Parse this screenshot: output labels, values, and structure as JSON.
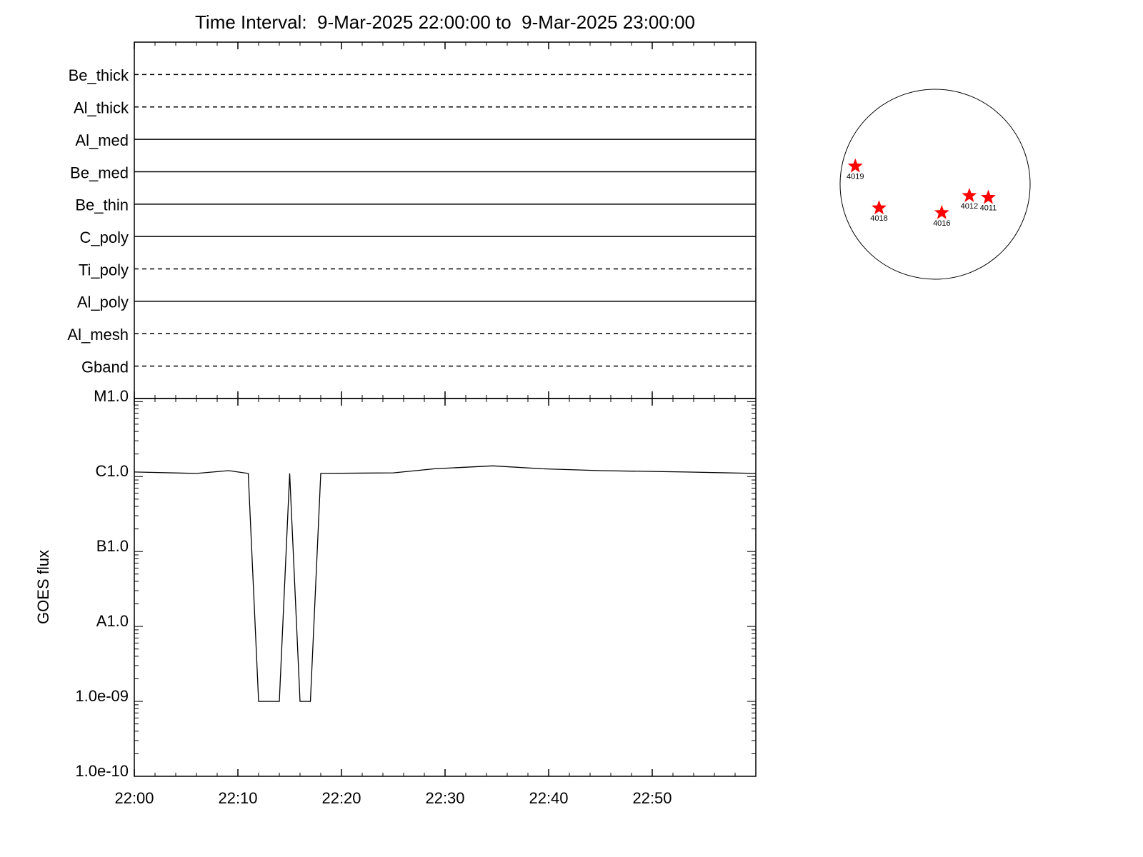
{
  "chart_data": [
    {
      "type": "channels",
      "title": "Time Interval:  9-Mar-2025 22:00:00 to  9-Mar-2025 23:00:00",
      "categories": [
        "Be_thick",
        "Al_thick",
        "Al_med",
        "Be_med",
        "Be_thin",
        "C_poly",
        "Ti_poly",
        "Al_poly",
        "Al_mesh",
        "Gband"
      ],
      "line_styles": [
        "dashed",
        "dashed",
        "solid",
        "solid",
        "solid",
        "solid",
        "dashed",
        "solid",
        "dashed",
        "dashed"
      ],
      "xlim": [
        0,
        60
      ],
      "xticks": [
        0,
        10,
        20,
        30,
        40,
        50
      ]
    },
    {
      "type": "line",
      "ylabel": "GOES flux",
      "log_scale": true,
      "color": "#000000",
      "x": [
        0,
        6,
        9.1,
        11,
        12,
        14,
        15,
        16,
        17,
        18,
        25,
        29,
        34.6,
        39.4,
        45,
        53.2,
        60
      ],
      "values": [
        1.15e-06,
        1.1e-06,
        1.2e-06,
        1.1e-06,
        1e-09,
        1e-09,
        1.1e-06,
        1e-09,
        1e-09,
        1.1e-06,
        1.12e-06,
        1.27e-06,
        1.39e-06,
        1.27e-06,
        1.2e-06,
        1.15e-06,
        1.1e-06
      ],
      "xlim": [
        0,
        60
      ],
      "xticks": [
        {
          "value": 0,
          "label": "22:00"
        },
        {
          "value": 10,
          "label": "22:10"
        },
        {
          "value": 20,
          "label": "22:20"
        },
        {
          "value": 30,
          "label": "22:30"
        },
        {
          "value": 40,
          "label": "22:40"
        },
        {
          "value": 50,
          "label": "22:50"
        }
      ],
      "ylim": [
        1e-10,
        1.1e-05
      ],
      "yticks": [
        {
          "value": 1e-05,
          "label": "M1.0"
        },
        {
          "value": 1e-06,
          "label": "C1.0"
        },
        {
          "value": 1e-07,
          "label": "B1.0"
        },
        {
          "value": 1e-08,
          "label": "A1.0"
        },
        {
          "value": 1e-09,
          "label": "1.0e-09"
        },
        {
          "value": 1e-10,
          "label": "1.0e-10"
        }
      ]
    },
    {
      "type": "disk",
      "color": "#ff0000",
      "xlim": [
        -1,
        1
      ],
      "ylim": [
        -1,
        1
      ],
      "labels": [
        "4019",
        "4018",
        "4016",
        "4012",
        "4011"
      ],
      "x": [
        -0.84,
        -0.59,
        0.07,
        0.36,
        0.56
      ],
      "y": [
        0.19,
        -0.25,
        -0.3,
        -0.12,
        -0.14
      ]
    }
  ]
}
